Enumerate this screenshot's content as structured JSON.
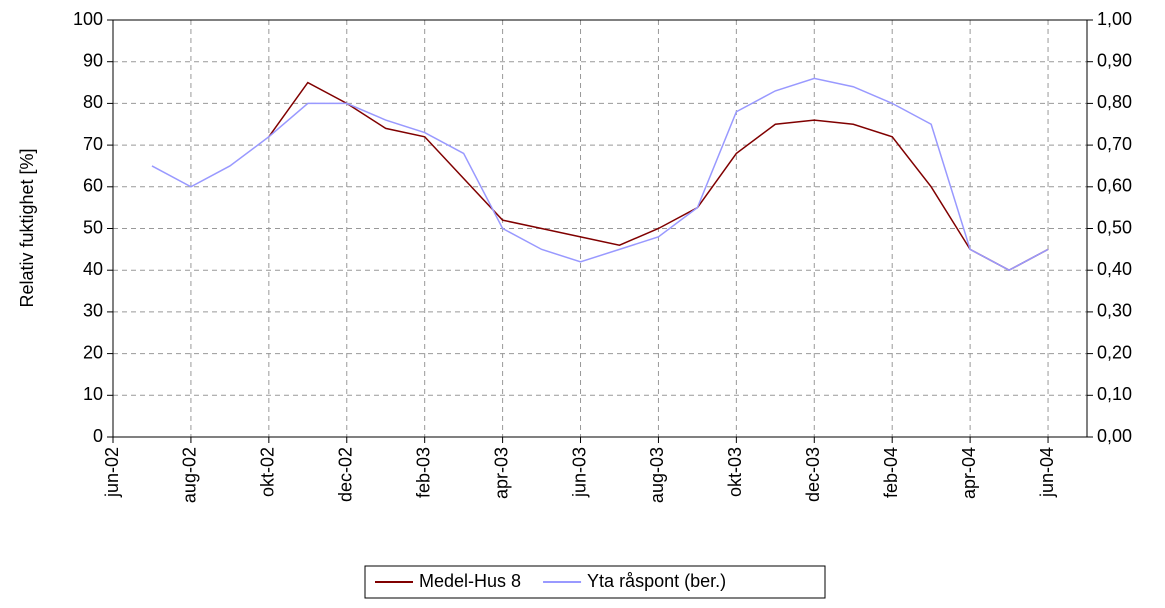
{
  "chart_data": {
    "type": "line",
    "x": [
      "2002-07",
      "2002-08",
      "2002-09",
      "2002-10",
      "2002-11",
      "2002-12",
      "2003-01",
      "2003-02",
      "2003-03",
      "2003-04",
      "2003-05",
      "2003-06",
      "2003-07",
      "2003-08",
      "2003-09",
      "2003-10",
      "2003-11",
      "2003-12",
      "2004-01",
      "2004-02",
      "2004-03",
      "2004-04",
      "2004-05",
      "2004-06"
    ],
    "xlim": [
      "2002-06",
      "2004-07"
    ],
    "xticks": [
      {
        "value": "2002-06",
        "label": "jun-02"
      },
      {
        "value": "2002-08",
        "label": "aug-02"
      },
      {
        "value": "2002-10",
        "label": "okt-02"
      },
      {
        "value": "2002-12",
        "label": "dec-02"
      },
      {
        "value": "2003-02",
        "label": "feb-03"
      },
      {
        "value": "2003-04",
        "label": "apr-03"
      },
      {
        "value": "2003-06",
        "label": "jun-03"
      },
      {
        "value": "2003-08",
        "label": "aug-03"
      },
      {
        "value": "2003-10",
        "label": "okt-03"
      },
      {
        "value": "2003-12",
        "label": "dec-03"
      },
      {
        "value": "2004-02",
        "label": "feb-04"
      },
      {
        "value": "2004-04",
        "label": "apr-04"
      },
      {
        "value": "2004-06",
        "label": "jun-04"
      }
    ],
    "y_label": "Relativ fuktighet [%]",
    "ylim": [
      0,
      100
    ],
    "yticks": [
      0,
      10,
      20,
      30,
      40,
      50,
      60,
      70,
      80,
      90,
      100
    ],
    "y2lim": [
      0,
      1
    ],
    "y2ticks": [
      {
        "value": 0,
        "label": "0,00"
      },
      {
        "value": 0.1,
        "label": "0,10"
      },
      {
        "value": 0.2,
        "label": "0,20"
      },
      {
        "value": 0.3,
        "label": "0,30"
      },
      {
        "value": 0.4,
        "label": "0,40"
      },
      {
        "value": 0.5,
        "label": "0,50"
      },
      {
        "value": 0.6,
        "label": "0,60"
      },
      {
        "value": 0.7,
        "label": "0,70"
      },
      {
        "value": 0.8,
        "label": "0,80"
      },
      {
        "value": 0.9,
        "label": "0,90"
      },
      {
        "value": 1,
        "label": "1,00"
      }
    ],
    "grid": true,
    "legend": "bottom",
    "series": [
      {
        "name": "Medel-Hus 8",
        "color": "#800000",
        "values": [
          null,
          null,
          null,
          72,
          85,
          80,
          74,
          72,
          62,
          52,
          50,
          48,
          46,
          50,
          55,
          68,
          75,
          76,
          75,
          72,
          60,
          45,
          40,
          45
        ]
      },
      {
        "name": "Yta råspont (ber.)",
        "color": "#9999ff",
        "axis": "y2",
        "values": [
          0.65,
          0.6,
          0.65,
          0.72,
          0.8,
          0.8,
          0.76,
          0.73,
          0.68,
          0.5,
          0.45,
          0.42,
          0.45,
          0.48,
          0.55,
          0.78,
          0.83,
          0.86,
          0.84,
          0.8,
          0.75,
          0.45,
          0.4,
          0.45
        ]
      }
    ]
  }
}
